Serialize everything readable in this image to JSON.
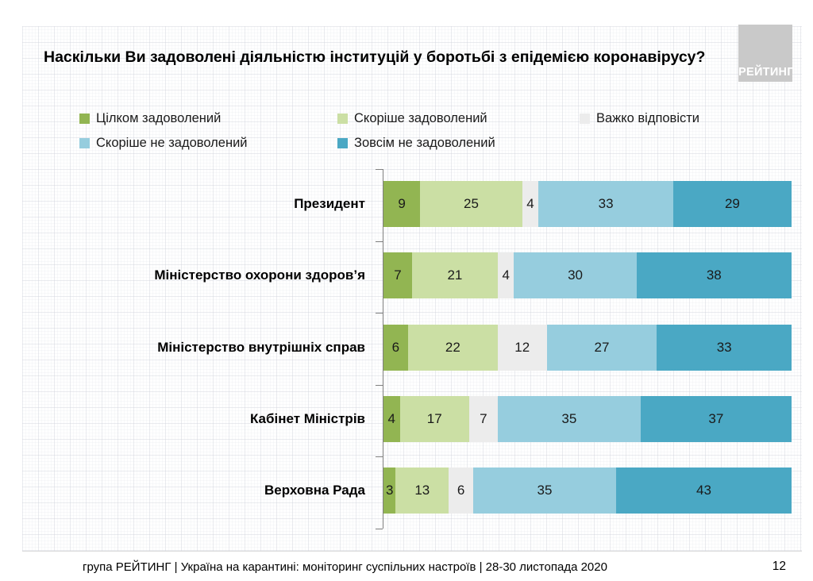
{
  "slide": {
    "title": "Наскільки Ви задоволені діяльністю інституцій у боротьбі з епідемією коронавірусу?",
    "logo_text": "РЕЙТИНГ",
    "footer": "група РЕЙТИНГ | Україна на карантині: моніторинг суспільних настроїв | 28-30 листопада 2020",
    "page_number": "12"
  },
  "colors": {
    "fully_satisfied": "#92B552",
    "rather_satisfied": "#CBDFA4",
    "hard_to_say": "#ECECEC",
    "rather_not_satisfied": "#96CDDE",
    "not_satisfied_at_all": "#4AA8C4",
    "logo_background": "#C9C9C9"
  },
  "legend": {
    "items": [
      {
        "label": "Цілком задоволений",
        "color": "#92B552"
      },
      {
        "label": "Скоріше задоволений",
        "color": "#CBDFA4"
      },
      {
        "label": "Важко відповісти",
        "color": "#ECECEC"
      },
      {
        "label": "Скоріше не задоволений",
        "color": "#96CDDE"
      },
      {
        "label": "Зовсім не задоволений",
        "color": "#4AA8C4"
      }
    ]
  },
  "chart_data": {
    "type": "bar",
    "orientation": "horizontal",
    "stacked": true,
    "title": "Наскільки Ви задоволені діяльністю інституцій у боротьбі з епідемією коронавірусу?",
    "categories": [
      "Президент",
      "Міністерство охорони здоров’я",
      "Міністерство внутрішніх справ",
      "Кабінет Міністрів",
      "Верховна Рада"
    ],
    "series": [
      {
        "name": "Цілком задоволений",
        "color": "#92B552",
        "values": [
          9,
          7,
          6,
          4,
          3
        ]
      },
      {
        "name": "Скоріше задоволений",
        "color": "#CBDFA4",
        "values": [
          25,
          21,
          22,
          17,
          13
        ]
      },
      {
        "name": "Важко відповісти",
        "color": "#ECECEC",
        "values": [
          4,
          4,
          12,
          7,
          6
        ]
      },
      {
        "name": "Скоріше не задоволений",
        "color": "#96CDDE",
        "values": [
          33,
          30,
          27,
          35,
          35
        ]
      },
      {
        "name": "Зовсім не задоволений",
        "color": "#4AA8C4",
        "values": [
          29,
          38,
          33,
          37,
          43
        ]
      }
    ],
    "xlim": [
      0,
      100
    ],
    "value_labels": true,
    "grid": false,
    "legend_position": "top"
  }
}
